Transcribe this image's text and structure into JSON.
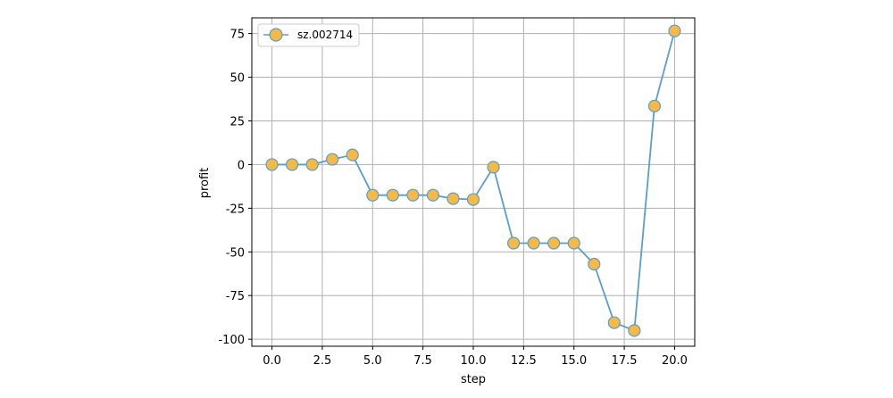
{
  "chart_data": {
    "type": "line",
    "xlabel": "step",
    "ylabel": "profit",
    "xlim": [
      -1.0,
      21.0
    ],
    "ylim": [
      -104,
      84
    ],
    "xticks": [
      0.0,
      2.5,
      5.0,
      7.5,
      10.0,
      12.5,
      15.0,
      17.5,
      20.0
    ],
    "xtick_labels": [
      "0.0",
      "2.5",
      "5.0",
      "7.5",
      "10.0",
      "12.5",
      "15.0",
      "17.5",
      "20.0"
    ],
    "yticks": [
      75,
      50,
      25,
      0,
      -25,
      -50,
      -75,
      -100
    ],
    "ytick_labels": [
      "75",
      "50",
      "25",
      "0",
      "-25",
      "-50",
      "-75",
      "-100"
    ],
    "grid": true,
    "legend_position": "top-left",
    "series": [
      {
        "name": "sz.002714",
        "line_color": "#5b9ec9",
        "marker_face": "#f5b945",
        "marker_edge": "#5b9ec9",
        "x": [
          0,
          1,
          2,
          3,
          4,
          5,
          6,
          7,
          8,
          9,
          10,
          11,
          12,
          13,
          14,
          15,
          16,
          17,
          18,
          19,
          20
        ],
        "y": [
          0,
          0,
          0,
          3,
          5.5,
          -17.5,
          -17.5,
          -17.5,
          -17.5,
          -19.5,
          -20,
          -1.5,
          -45,
          -45,
          -45,
          -45,
          -57,
          -90.5,
          -95,
          33.5,
          76.5
        ]
      }
    ]
  }
}
